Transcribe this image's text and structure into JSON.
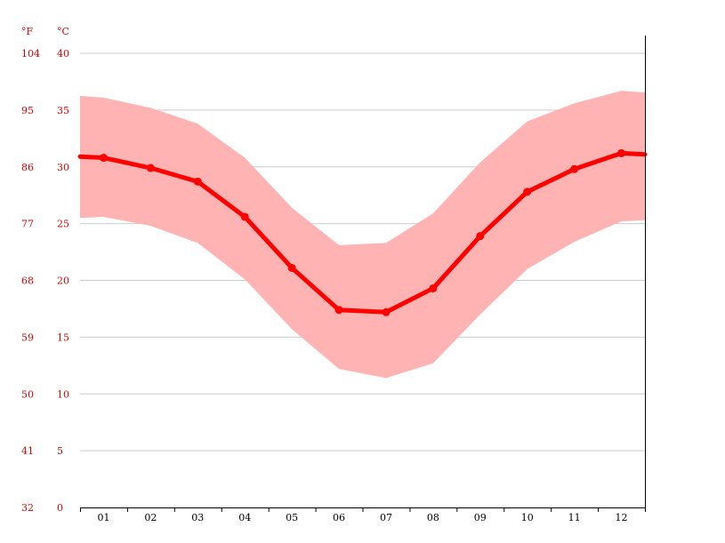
{
  "chart_data": {
    "type": "line",
    "unit_labels": {
      "fahrenheit": "°F",
      "celsius": "°C"
    },
    "categories": [
      "01",
      "02",
      "03",
      "04",
      "05",
      "06",
      "07",
      "08",
      "09",
      "10",
      "11",
      "12"
    ],
    "y_ticks_c": [
      "0",
      "5",
      "10",
      "15",
      "20",
      "25",
      "30",
      "35",
      "40"
    ],
    "y_ticks_f": [
      "32",
      "41",
      "50",
      "59",
      "68",
      "77",
      "86",
      "95",
      "104"
    ],
    "ylim": [
      0,
      40
    ],
    "grid": true,
    "series": [
      {
        "role": "mean",
        "values": [
          30.8,
          29.9,
          28.7,
          25.6,
          21.1,
          17.4,
          17.2,
          19.3,
          23.9,
          27.8,
          29.8,
          31.2
        ]
      },
      {
        "role": "max",
        "values": [
          36.1,
          35.2,
          33.8,
          30.8,
          26.4,
          23.1,
          23.3,
          25.9,
          30.4,
          34.0,
          35.6,
          36.7
        ]
      },
      {
        "role": "min",
        "values": [
          25.6,
          24.8,
          23.3,
          20.1,
          15.7,
          12.2,
          11.4,
          12.7,
          17.0,
          21.0,
          23.4,
          25.2
        ]
      }
    ],
    "colors": {
      "line": "#ff0000",
      "band": "#ffb3b3",
      "grid": "#cccccc",
      "axis_text": "#e00000"
    }
  }
}
